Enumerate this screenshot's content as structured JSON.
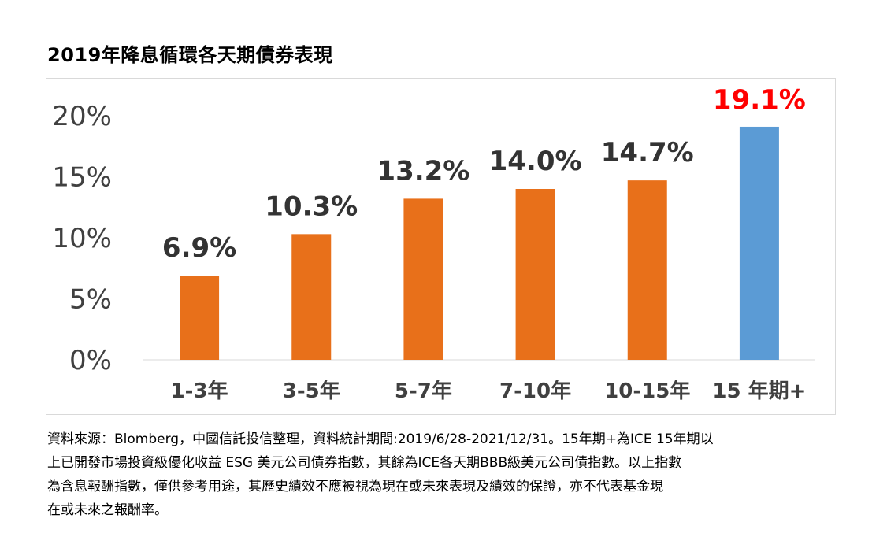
{
  "chart_data": {
    "type": "bar",
    "title": "2019年降息循環各天期債券表現",
    "categories": [
      "1-3年",
      "3-5年",
      "5-7年",
      "7-10年",
      "10-15年",
      "15 年期+"
    ],
    "values": [
      6.9,
      10.3,
      13.2,
      14.0,
      14.7,
      19.1
    ],
    "value_labels": [
      "6.9%",
      "10.3%",
      "13.2%",
      "14.0%",
      "14.7%",
      "19.1%"
    ],
    "ylim": [
      0,
      20
    ],
    "yticks": [
      0,
      5,
      10,
      15,
      20
    ],
    "ytick_labels": [
      "0%",
      "5%",
      "10%",
      "15%",
      "20%"
    ],
    "xlabel": "",
    "ylabel": "",
    "grid": false,
    "colors": {
      "bar": "#E8701A",
      "highlight_bar": "#5B9BD5",
      "label": "#333333",
      "highlight_label": "#FF0000",
      "axis_text": "#404040"
    }
  },
  "footnote": {
    "lines": [
      "資料來源：Blomberg，中國信託投信整理，資料統計期間:2019/6/28-2021/12/31。15年期+為ICE 15年期以",
      "上已開發市場投資級優化收益 ESG 美元公司債券指數，其餘為ICE各天期BBB級美元公司債指數。以上指數",
      "為含息報酬指數，僅供參考用途，其歷史績效不應被視為現在或未來表現及績效的保證，亦不代表基金現",
      "在或未來之報酬率。"
    ]
  }
}
